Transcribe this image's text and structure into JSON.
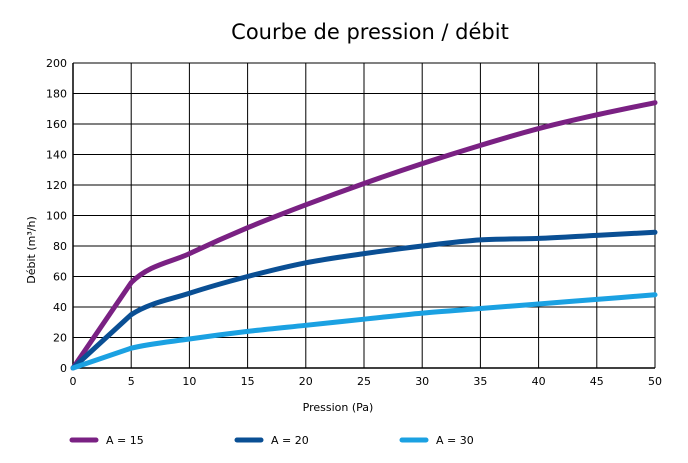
{
  "chart_data": {
    "type": "line",
    "title": "Courbe de pression / débit",
    "xlabel": "Pression (Pa)",
    "ylabel": "Débit (m³/h)",
    "xlim": [
      0,
      50
    ],
    "ylim": [
      0,
      200
    ],
    "x_ticks": [
      0,
      5,
      10,
      15,
      20,
      25,
      30,
      35,
      40,
      45,
      50
    ],
    "y_ticks": [
      0,
      20,
      40,
      60,
      80,
      100,
      120,
      140,
      160,
      180,
      200
    ],
    "grid": true,
    "legend_position": "bottom",
    "x": [
      0,
      5,
      10,
      15,
      20,
      25,
      30,
      35,
      40,
      45,
      50
    ],
    "series": [
      {
        "name": "A = 15",
        "color": "#7a2183",
        "values": [
          0,
          56,
          75,
          92,
          107,
          121,
          134,
          146,
          157,
          166,
          174
        ]
      },
      {
        "name": "A = 20",
        "color": "#0a4f94",
        "values": [
          0,
          35,
          49,
          60,
          69,
          75,
          80,
          84,
          85,
          87,
          89
        ]
      },
      {
        "name": "A = 30",
        "color": "#1ba1e2",
        "values": [
          0,
          13,
          19,
          24,
          28,
          32,
          36,
          39,
          42,
          45,
          48
        ]
      }
    ]
  }
}
